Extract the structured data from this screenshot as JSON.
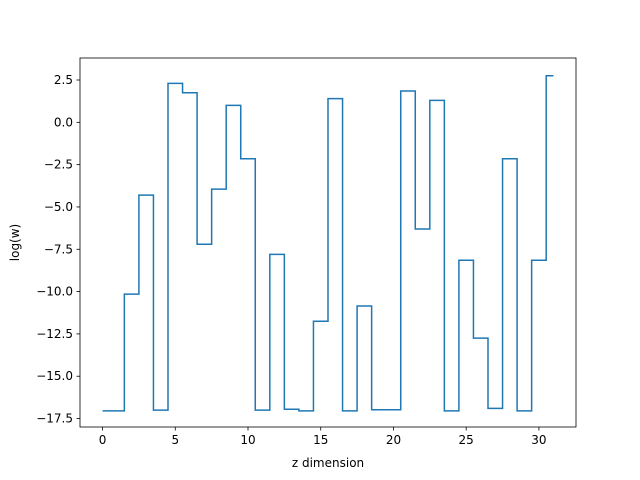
{
  "chart_data": {
    "type": "line",
    "drawstyle": "steps-mid",
    "xlabel": "z dimension",
    "ylabel": "log(w)",
    "xlim": [
      -1.55,
      32.55
    ],
    "ylim": [
      -18.0,
      3.8
    ],
    "xticks": [
      0,
      5,
      10,
      15,
      20,
      25,
      30
    ],
    "xtick_labels": [
      "0",
      "5",
      "10",
      "15",
      "20",
      "25",
      "30"
    ],
    "yticks": [
      2.5,
      0.0,
      -2.5,
      -5.0,
      -7.5,
      -10.0,
      -12.5,
      -15.0,
      -17.5
    ],
    "ytick_labels": [
      "2.5",
      "0.0",
      "−2.5",
      "−5.0",
      "−7.5",
      "−10.0",
      "−12.5",
      "−15.0",
      "−17.5"
    ],
    "grid": false,
    "line_color": "#1f77b4",
    "series": [
      {
        "x": [
          0,
          1,
          2,
          3,
          4,
          5,
          6,
          7,
          8,
          9,
          10,
          11,
          12,
          13,
          14,
          15,
          16,
          17,
          18,
          19,
          20,
          21,
          22,
          23,
          24,
          25,
          26,
          27,
          28,
          29,
          30,
          31
        ],
        "y": [
          -17.05,
          -17.05,
          -10.15,
          -4.3,
          -17.0,
          2.3,
          1.75,
          -7.2,
          -3.95,
          1.0,
          -2.15,
          -17.0,
          -7.8,
          -16.95,
          -17.05,
          -11.75,
          1.4,
          -17.05,
          -10.85,
          -16.98,
          -16.98,
          1.85,
          -6.3,
          1.3,
          -17.05,
          -8.15,
          -12.75,
          -16.9,
          -2.15,
          -17.05,
          -8.15,
          2.75
        ]
      }
    ]
  }
}
